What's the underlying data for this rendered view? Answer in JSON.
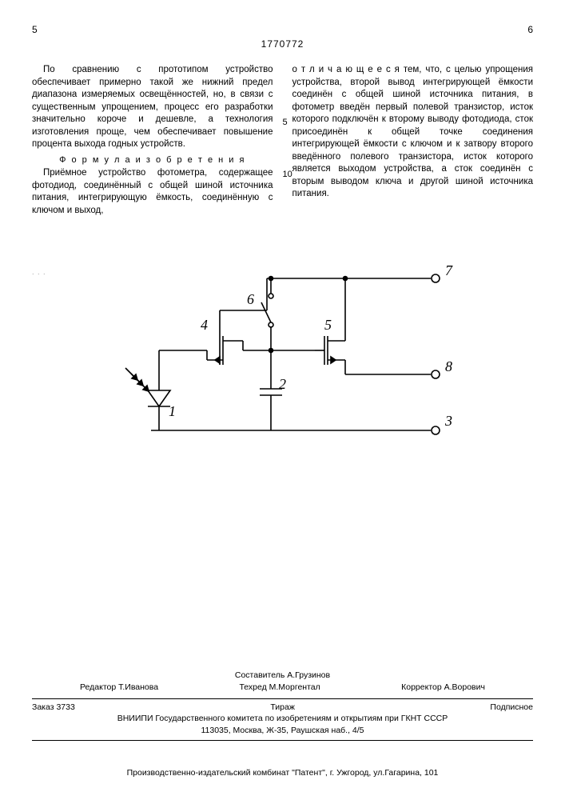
{
  "header": {
    "page_left": "5",
    "page_right": "6",
    "patent_number": "1770772"
  },
  "body": {
    "col1_p1": "По сравнению с прототипом устройство обеспечивает примерно такой же нижний предел диапазона измеряемых освещённостей, но, в связи с существенным упрощением, процесс его разработки значительно короче и дешевле, а технология изготовления проще, чем обеспечивает повышение процента выхода годных устройств.",
    "formula_head": "Ф о р м у л а  и з о б р е т е н и я",
    "col1_p2": "Приёмное устройство фотометра, содержащее фотодиод, соединённый с общей шиной источника питания, интегрирующую ёмкость, соединённую с ключом и выход,",
    "col2_p1": "о т л и ч а ю щ е е с я  тем, что, с целью упрощения устройства, второй вывод интегрирующей ёмкости соединён с общей шиной источника питания, в фотометр введён первый полевой транзистор, исток которого подключён к второму выводу фотодиода, сток присоединён к общей точке соединения интегрирующей ёмкости с ключом и к затвору второго введённого полевого транзистора, исток которого является выходом устройства, а сток соединён с вторым выводом ключа и другой шиной источника питания.",
    "line_mark_5": "5",
    "line_mark_10": "10",
    "artifact": ". . ."
  },
  "diagram": {
    "labels": {
      "n1": "1",
      "n2": "2",
      "n3": "3",
      "n4": "4",
      "n5": "5",
      "n6": "6",
      "n7": "7",
      "n8": "8"
    },
    "stroke": "#000000",
    "stroke_width": 1.6,
    "text_font_size": 18,
    "text_font_style": "italic"
  },
  "footer": {
    "compiler": "Составитель  А.Грузинов",
    "editor": "Редактор  Т.Иванова",
    "techred": "Техред М.Моргентал",
    "corrector": "Корректор  А.Ворович",
    "order": "Заказ 3733",
    "tirazh": "Тираж",
    "subscr": "Подписное",
    "org1": "ВНИИПИ Государственного комитета по изобретениям и открытиям при ГКНТ СССР",
    "org2": "113035, Москва, Ж-35, Раушская наб., 4/5",
    "printery": "Производственно-издательский комбинат \"Патент\", г. Ужгород, ул.Гагарина, 101"
  }
}
